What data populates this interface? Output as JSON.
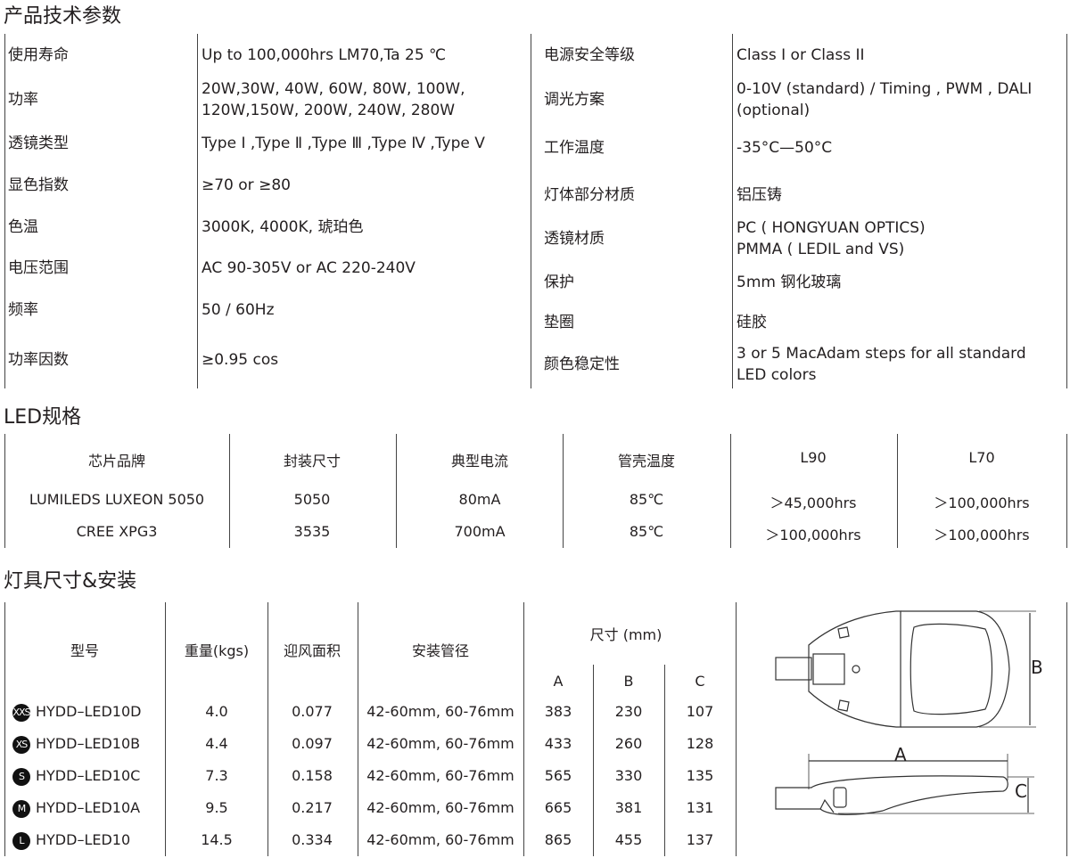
{
  "sections": {
    "specs_title": "产品技术参数",
    "led_title": "LED规格",
    "dims_title": "灯具尺寸&安装"
  },
  "specs_left": [
    {
      "label": "使用寿命",
      "value": [
        "Up to 100,000hrs LM70,Ta 25 ℃"
      ]
    },
    {
      "label": "功率",
      "value": [
        "20W,30W, 40W, 60W, 80W, 100W,",
        "120W,150W, 200W, 240W, 280W"
      ]
    },
    {
      "label": "透镜类型",
      "value": [
        "Type Ⅰ ,Type Ⅱ ,Type Ⅲ ,Type Ⅳ ,Type Ⅴ"
      ]
    },
    {
      "label": "显色指数",
      "value": [
        "≥70 or ≥80"
      ]
    },
    {
      "label": "色温",
      "value": [
        "3000K, 4000K, 琥珀色"
      ]
    },
    {
      "label": "电压范围",
      "value": [
        "AC 90-305V or AC 220-240V"
      ]
    },
    {
      "label": "频率",
      "value": [
        "50 / 60Hz"
      ]
    },
    {
      "label": "功率因数",
      "value": [
        "≥0.95 cos"
      ]
    }
  ],
  "specs_right": [
    {
      "label": "电源安全等级",
      "value": [
        "Class I or Class II"
      ]
    },
    {
      "label": "调光方案",
      "value": [
        "0-10V (standard) / Timing , PWM , DALI",
        "(optional)"
      ]
    },
    {
      "label": "工作温度",
      "value": [
        "-35°C—50°C"
      ]
    },
    {
      "label": "灯体部分材质",
      "value": [
        "铝压铸"
      ]
    },
    {
      "label": "透镜材质",
      "value": [
        "PC ( HONGYUAN OPTICS)",
        "PMMA ( LEDIL and VS)"
      ]
    },
    {
      "label": "保护",
      "value": [
        "5mm 钢化玻璃"
      ]
    },
    {
      "label": "垫圈",
      "value": [
        "硅胶"
      ]
    },
    {
      "label": "颜色稳定性",
      "value": [
        "3 or 5 MacAdam steps for all standard",
        "LED colors"
      ]
    }
  ],
  "led_table": {
    "headers": [
      "芯片品牌",
      "封装尺寸",
      "典型电流",
      "管壳温度",
      "L90",
      "L70"
    ],
    "rows": [
      [
        "LUMILEDS LUXEON 5050",
        "5050",
        "80mA",
        "85℃",
        "＞45,000hrs",
        "＞100,000hrs"
      ],
      [
        "CREE XPG3",
        "3535",
        "700mA",
        "85℃",
        "＞100,000hrs",
        "＞100,000hrs"
      ]
    ]
  },
  "dims_table": {
    "headers": {
      "model": "型号",
      "weight": "重量(kgs)",
      "wind_area": "迎风面积",
      "pipe": "安装管径",
      "size": "尺寸 (mm)",
      "a": "A",
      "b": "B",
      "c": "C"
    },
    "rows": [
      {
        "size_badge": "XXS",
        "model": "HYDD–LED10D",
        "weight": "4.0",
        "wind_area": "0.077",
        "pipe": "42-60mm, 60-76mm",
        "a": "383",
        "b": "230",
        "c": "107"
      },
      {
        "size_badge": "XS",
        "model": "HYDD–LED10B",
        "weight": "4.4",
        "wind_area": "0.097",
        "pipe": "42-60mm, 60-76mm",
        "a": "433",
        "b": "260",
        "c": "128"
      },
      {
        "size_badge": "S",
        "model": "HYDD–LED10C",
        "weight": "7.3",
        "wind_area": "0.158",
        "pipe": "42-60mm, 60-76mm",
        "a": "565",
        "b": "330",
        "c": "135"
      },
      {
        "size_badge": "M",
        "model": "HYDD–LED10A",
        "weight": "9.5",
        "wind_area": "0.217",
        "pipe": "42-60mm, 60-76mm",
        "a": "665",
        "b": "381",
        "c": "131"
      },
      {
        "size_badge": "L",
        "model": "HYDD–LED10",
        "weight": "14.5",
        "wind_area": "0.334",
        "pipe": "42-60mm, 60-76mm",
        "a": "865",
        "b": "455",
        "c": "137"
      }
    ]
  },
  "drawing": {
    "label_a": "A",
    "label_b": "B",
    "label_c": "C"
  }
}
